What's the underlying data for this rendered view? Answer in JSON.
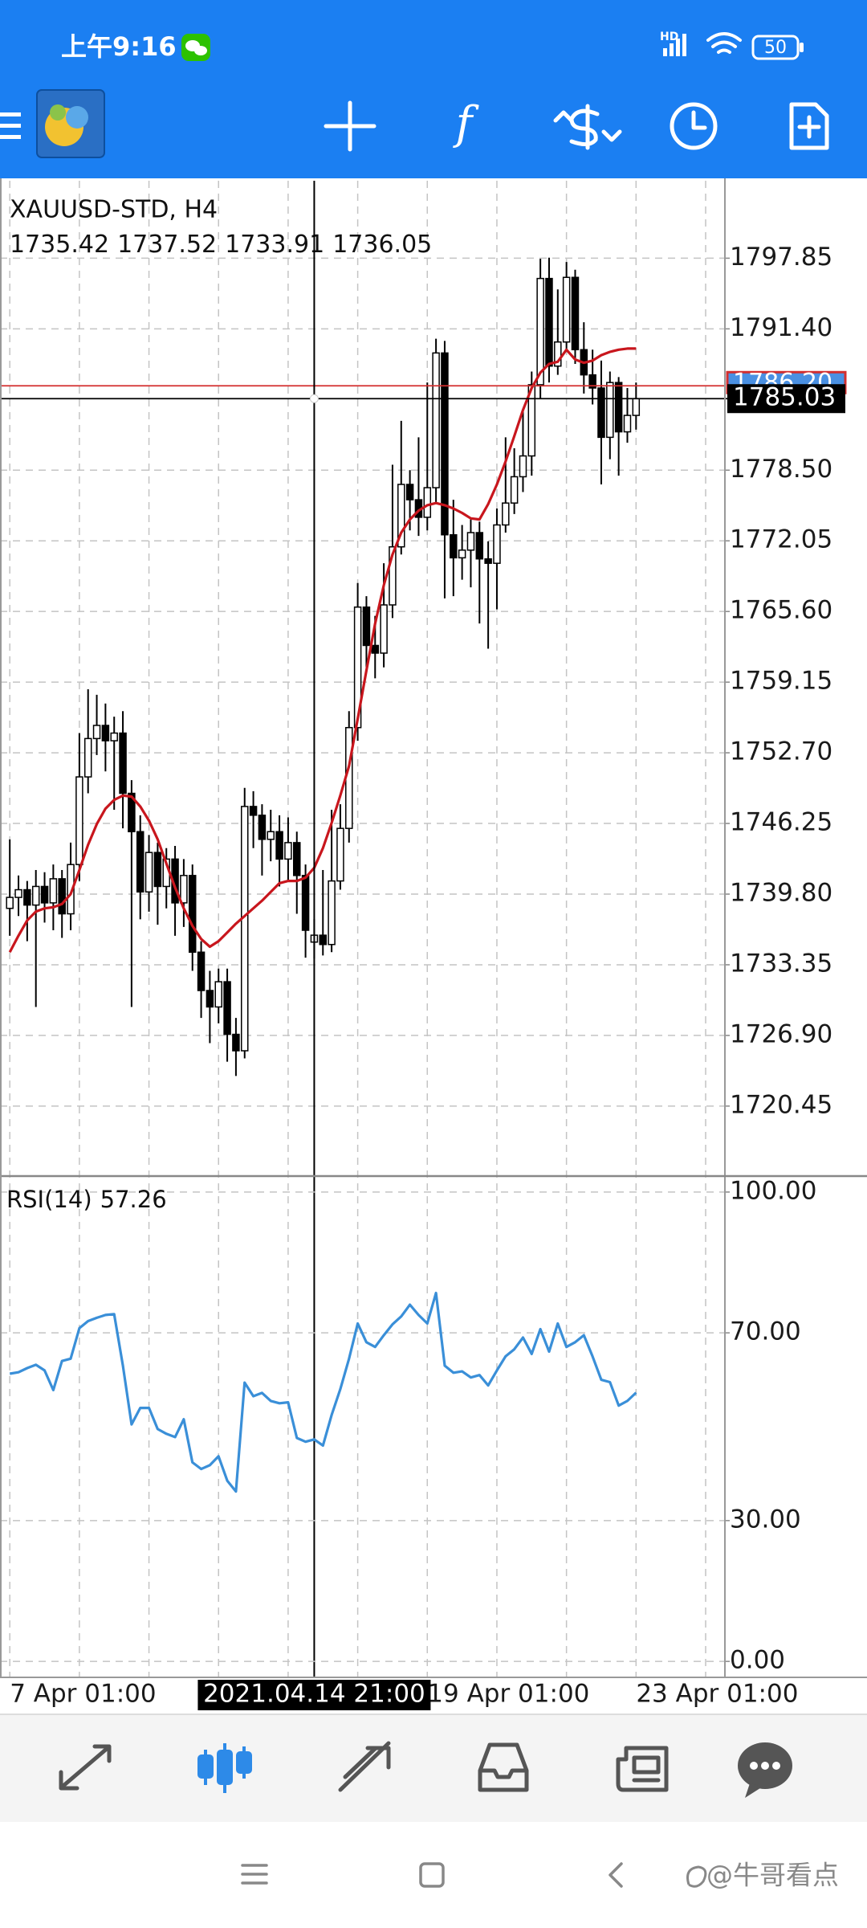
{
  "status_bar": {
    "time": "上午9:16",
    "battery": 50
  },
  "chart_data": [
    {
      "type": "candlestick",
      "title": "XAUUSD-STD, H4",
      "crosshair_index": 35,
      "categories": [
        "7 Apr 01:00",
        null,
        null,
        null,
        null,
        null,
        null,
        null,
        null,
        null,
        null,
        null,
        null,
        null,
        null,
        null,
        null,
        null,
        null,
        null,
        null,
        null,
        null,
        null,
        null,
        null,
        null,
        null,
        null,
        null,
        null,
        null,
        null,
        null,
        null,
        "2021.04.14 21:00",
        null,
        null,
        null,
        null,
        null,
        null,
        null,
        null,
        null,
        null,
        null,
        null,
        "19 Apr 01:00",
        null,
        null,
        null,
        null,
        null,
        null,
        null,
        null,
        null,
        null,
        null,
        null,
        null,
        null,
        null,
        null,
        null,
        null,
        null,
        null,
        null,
        null,
        null,
        "23 Apr 01:00"
      ],
      "open": [
        1738.5,
        1739.5,
        1740.2,
        1738.8,
        1740.5,
        1739.0,
        1741.2,
        1738.0,
        1742.5,
        1750.5,
        1754.0,
        1755.2,
        1753.8,
        1754.5,
        1749.0,
        1745.5,
        1740.0,
        1743.6,
        1740.5,
        1743.0,
        1739.0,
        1741.5,
        1734.5,
        1731.0,
        1729.5,
        1731.8,
        1727.0,
        1725.5,
        1747.8,
        1747.0,
        1744.8,
        1745.5,
        1743.0,
        1744.5,
        1741.5,
        1735.42,
        1736.05,
        1735.2,
        1741.0,
        1745.8,
        1755.0,
        1766.0,
        1762.5,
        1761.8,
        1766.2,
        1771.5,
        1777.2,
        1775.8,
        1774.2,
        1776.9,
        1789.2,
        1772.6,
        1770.5,
        1771.2,
        1772.8,
        1770.4,
        1770.0,
        1773.5,
        1775.5,
        1777.9,
        1779.8,
        1786.3,
        1796.0,
        1788.0,
        1790.2,
        1796.1,
        1789.5,
        1787.2,
        1786.0,
        1781.5,
        1786.5,
        1782.0,
        1783.5
      ],
      "high": [
        1744.8,
        1741.5,
        1741.0,
        1742.0,
        1741.8,
        1742.5,
        1742.0,
        1744.5,
        1754.5,
        1758.5,
        1758.0,
        1757.2,
        1756.0,
        1756.5,
        1750.2,
        1747.0,
        1745.2,
        1744.5,
        1744.0,
        1744.2,
        1743.0,
        1742.5,
        1735.5,
        1732.8,
        1733.0,
        1733.0,
        1728.5,
        1749.5,
        1749.2,
        1748.0,
        1747.5,
        1747.0,
        1746.8,
        1745.5,
        1742.5,
        1737.52,
        1742.0,
        1747.5,
        1748.0,
        1756.5,
        1768.2,
        1767.0,
        1765.2,
        1770.0,
        1779.0,
        1783.0,
        1778.5,
        1781.5,
        1786.5,
        1790.5,
        1790.3,
        1775.8,
        1773.5,
        1774.0,
        1773.8,
        1772.0,
        1775.0,
        1781.5,
        1780.5,
        1784.0,
        1787.5,
        1797.8,
        1797.9,
        1795.0,
        1797.5,
        1796.8,
        1792.0,
        1789.5,
        1788.5,
        1787.5,
        1787.0,
        1786.0,
        1786.5
      ],
      "low": [
        1736.0,
        1737.8,
        1735.5,
        1729.5,
        1737.2,
        1736.5,
        1735.8,
        1736.5,
        1741.0,
        1749.0,
        1752.5,
        1751.0,
        1747.5,
        1745.8,
        1729.5,
        1737.5,
        1738.2,
        1737.0,
        1738.5,
        1736.0,
        1736.8,
        1732.8,
        1728.5,
        1726.2,
        1728.0,
        1724.5,
        1723.2,
        1724.8,
        1744.0,
        1741.5,
        1742.8,
        1740.5,
        1741.0,
        1738.0,
        1734.0,
        1733.91,
        1734.2,
        1734.5,
        1740.2,
        1744.5,
        1753.8,
        1760.5,
        1759.5,
        1760.5,
        1765.0,
        1770.8,
        1773.0,
        1772.5,
        1773.0,
        1775.5,
        1766.8,
        1767.0,
        1768.5,
        1767.8,
        1764.5,
        1762.2,
        1765.8,
        1772.8,
        1774.5,
        1776.5,
        1778.0,
        1785.0,
        1786.5,
        1787.2,
        1789.5,
        1788.2,
        1785.5,
        1784.5,
        1777.2,
        1779.5,
        1778.0,
        1781.0,
        1782.2
      ],
      "close": [
        1739.5,
        1740.2,
        1738.8,
        1740.5,
        1739.0,
        1741.2,
        1738.0,
        1742.5,
        1750.5,
        1754.0,
        1755.2,
        1753.8,
        1754.5,
        1749.0,
        1745.5,
        1740.0,
        1743.6,
        1740.5,
        1743.0,
        1739.0,
        1741.5,
        1734.5,
        1731.0,
        1729.5,
        1731.8,
        1727.0,
        1725.5,
        1747.8,
        1747.0,
        1744.8,
        1745.5,
        1743.0,
        1744.5,
        1741.5,
        1736.5,
        1736.05,
        1735.2,
        1741.0,
        1745.8,
        1755.0,
        1766.0,
        1762.5,
        1761.8,
        1766.2,
        1771.5,
        1777.2,
        1775.8,
        1774.2,
        1776.9,
        1789.2,
        1772.6,
        1770.5,
        1771.2,
        1772.8,
        1770.4,
        1770.0,
        1773.5,
        1775.5,
        1777.9,
        1779.8,
        1786.3,
        1796.0,
        1788.0,
        1790.2,
        1796.1,
        1789.5,
        1787.2,
        1786.0,
        1781.5,
        1786.5,
        1782.0,
        1783.5,
        1785.03
      ],
      "up_color": "#ffffff",
      "down_color": "#000000",
      "ma": {
        "color": "#c8161d",
        "values": [
          1734.5,
          1736.0,
          1737.4,
          1738.2,
          1738.5,
          1738.6,
          1738.9,
          1739.8,
          1742.0,
          1744.3,
          1746.2,
          1747.6,
          1748.4,
          1748.8,
          1748.7,
          1747.8,
          1746.5,
          1744.8,
          1742.6,
          1740.4,
          1738.5,
          1736.9,
          1735.7,
          1735.0,
          1735.5,
          1736.3,
          1737.1,
          1737.8,
          1738.5,
          1739.2,
          1740.0,
          1740.8,
          1741.0,
          1741.0,
          1741.3,
          1742.2,
          1744.0,
          1746.3,
          1748.8,
          1751.5,
          1755.8,
          1760.2,
          1764.5,
          1768.0,
          1770.8,
          1772.8,
          1774.0,
          1774.8,
          1775.3,
          1775.5,
          1775.3,
          1775.0,
          1774.6,
          1774.1,
          1774.0,
          1775.4,
          1777.2,
          1779.3,
          1781.6,
          1784.0,
          1786.0,
          1787.4,
          1788.2,
          1788.4,
          1789.5,
          1788.6,
          1788.3,
          1788.5,
          1789.0,
          1789.3,
          1789.5,
          1789.6,
          1789.6
        ]
      },
      "bid": 1785.03,
      "bid_color": "#000000",
      "ask": {
        "value": 1786.2,
        "label": "1786.20"
      },
      "ask_color": "#d32f2f",
      "ylim": [
        1714.06,
        1804.92
      ],
      "yticks": [
        1797.85,
        {
          "value": 1791.4,
          "label": "1791.40"
        },
        {
          "value": 1778.5,
          "label": "1778.50"
        },
        1772.05,
        {
          "value": 1765.6,
          "label": "1765.60"
        },
        1759.15,
        {
          "value": 1752.7,
          "label": "1752.70"
        },
        1746.25,
        {
          "value": 1739.8,
          "label": "1739.80"
        },
        1733.35,
        {
          "value": 1726.9,
          "label": "1726.90"
        },
        1720.45
      ],
      "grid": true
    },
    {
      "type": "line",
      "title": "RSI(14)",
      "color": "#3a8fd8",
      "values": [
        61.3,
        61.6,
        62.5,
        63.2,
        62.0,
        57.8,
        64.0,
        64.5,
        71.0,
        72.5,
        73.2,
        73.8,
        74.0,
        63.0,
        50.5,
        54.0,
        54.0,
        49.5,
        48.5,
        47.8,
        51.6,
        42.4,
        41.0,
        41.8,
        43.7,
        38.5,
        36.2,
        59.4,
        56.5,
        57.2,
        55.5,
        55.0,
        55.2,
        47.6,
        46.8,
        47.3,
        46.0,
        52.5,
        58.0,
        64.5,
        72.0,
        68.0,
        67.0,
        69.5,
        71.8,
        73.5,
        76.0,
        73.8,
        72.0,
        78.5,
        63.0,
        61.5,
        61.8,
        60.5,
        61.0,
        58.8,
        62.0,
        65.0,
        66.5,
        69.0,
        65.5,
        70.8,
        66.0,
        72.0,
        67.0,
        68.0,
        69.5,
        65.0,
        60.0,
        59.5,
        54.5,
        55.5,
        57.26
      ],
      "ylim": [
        -3.4,
        103.4
      ],
      "yticks": [
        {
          "value": 100,
          "label": "100.00"
        },
        {
          "value": 70,
          "label": "70.00"
        },
        {
          "value": 30,
          "label": "30.00"
        },
        {
          "value": 0,
          "label": "0.00"
        }
      ],
      "grid": true
    }
  ],
  "watermark": "@牛哥看点"
}
